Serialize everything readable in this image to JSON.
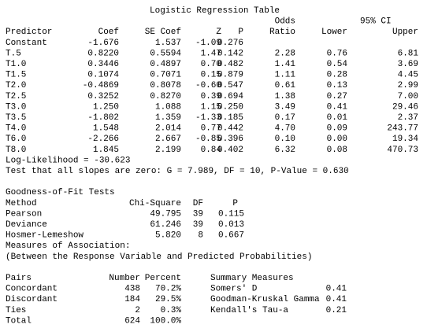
{
  "regression": {
    "title": "Logistic Regression Table",
    "header_top": [
      "Odds",
      "95% CI"
    ],
    "columns": [
      "Predictor",
      "Coef",
      "SE Coef",
      "Z",
      "P",
      "Ratio",
      "Lower",
      "Upper"
    ],
    "rows": [
      [
        "Constant",
        "-1.676",
        "1.537",
        "-1.09",
        "0.276"
      ],
      [
        "T.5",
        "0.8220",
        "0.5594",
        "1.47",
        "0.142",
        "2.28",
        "0.76",
        "6.81"
      ],
      [
        "T1.0",
        "0.3446",
        "0.4897",
        "0.70",
        "0.482",
        "1.41",
        "0.54",
        "3.69"
      ],
      [
        "T1.5",
        "0.1074",
        "0.7071",
        "0.15",
        "0.879",
        "1.11",
        "0.28",
        "4.45"
      ],
      [
        "T2.0",
        "-0.4869",
        "0.8078",
        "-0.60",
        "0.547",
        "0.61",
        "0.13",
        "2.99"
      ],
      [
        "T2.5",
        "0.3252",
        "0.8270",
        "0.39",
        "0.694",
        "1.38",
        "0.27",
        "7.00"
      ],
      [
        "T3.0",
        "1.250",
        "1.088",
        "1.15",
        "0.250",
        "3.49",
        "0.41",
        "29.46"
      ],
      [
        "T3.5",
        "-1.802",
        "1.359",
        "-1.33",
        "0.185",
        "0.17",
        "0.01",
        "2.37"
      ],
      [
        "T4.0",
        "1.548",
        "2.014",
        "0.77",
        "0.442",
        "4.70",
        "0.09",
        "243.77"
      ],
      [
        "T6.0",
        "-2.266",
        "2.667",
        "-0.85",
        "0.396",
        "0.10",
        "0.00",
        "19.34"
      ],
      [
        "T8.0",
        "1.845",
        "2.199",
        "0.84",
        "0.402",
        "6.32",
        "0.08",
        "470.73"
      ]
    ]
  },
  "log_likelihood": "Log-Likelihood = -30.623",
  "slopes_test": "Test that all slopes are zero: G = 7.989, DF = 10, P-Value = 0.630",
  "goodness_of_fit": {
    "title": "Goodness-of-Fit Tests",
    "columns": [
      "Method",
      "Chi-Square",
      "DF",
      "P"
    ],
    "rows": [
      [
        "Pearson",
        "49.795",
        "39",
        "0.115"
      ],
      [
        "Deviance",
        "61.246",
        "39",
        "0.013"
      ],
      [
        "Hosmer-Lemeshow",
        "5.820",
        "8",
        "0.667"
      ]
    ]
  },
  "association": {
    "title": "Measures of Association:",
    "subtitle": "(Between the Response Variable and Predicted Probabilities)",
    "columns": [
      "Pairs",
      "Number",
      "Percent"
    ],
    "rows": [
      [
        "Concordant",
        "438",
        "70.2%"
      ],
      [
        "Discordant",
        "184",
        "29.5%"
      ],
      [
        "Ties",
        "2",
        "0.3%"
      ],
      [
        "Total",
        "624",
        "100.0%"
      ]
    ],
    "summary_title": "Summary Measures",
    "summary_rows": [
      [
        "Somers' D",
        "0.41"
      ],
      [
        "Goodman-Kruskal Gamma",
        "0.41"
      ],
      [
        "Kendall's Tau-a",
        "0.21"
      ]
    ]
  }
}
